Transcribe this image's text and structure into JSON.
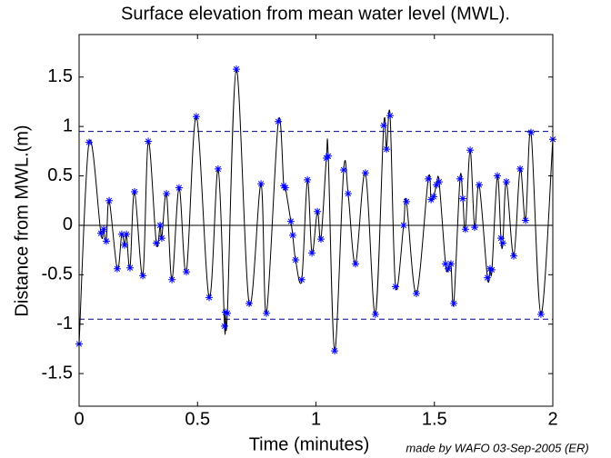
{
  "chart_data": {
    "type": "line",
    "title": "Surface elevation from mean water level (MWL).",
    "xlabel": "Time (minutes)",
    "ylabel": "Distance from MWL.(m)",
    "credit": "made by WAFO 03-Sep-2005 (ER)",
    "x": [
      0,
      0.042,
      0.092,
      0.104,
      0.115,
      0.127,
      0.161,
      0.18,
      0.192,
      0.2,
      0.215,
      0.234,
      0.269,
      0.292,
      0.326,
      0.342,
      0.349,
      0.369,
      0.392,
      0.422,
      0.453,
      0.495,
      0.549,
      0.587,
      0.614,
      0.618,
      0.626,
      0.664,
      0.718,
      0.768,
      0.791,
      0.841,
      0.864,
      0.871,
      0.894,
      0.902,
      0.914,
      0.94,
      0.964,
      0.983,
      1.006,
      1.021,
      1.044,
      1.052,
      1.079,
      1.117,
      1.136,
      1.167,
      1.209,
      1.251,
      1.286,
      1.298,
      1.313,
      1.336,
      1.37,
      1.382,
      1.424,
      1.474,
      1.486,
      1.497,
      1.509,
      1.52,
      1.547,
      1.559,
      1.57,
      1.582,
      1.608,
      1.62,
      1.631,
      1.651,
      1.67,
      1.689,
      1.724,
      1.735,
      1.743,
      1.766,
      1.781,
      1.789,
      1.804,
      1.835,
      1.862,
      1.885,
      1.908,
      1.95,
      2.0
    ],
    "series": [
      {
        "name": "surface",
        "color": "#000000",
        "marker_color": "#0000ff",
        "values": [
          -1.2,
          0.84,
          -0.08,
          -0.04,
          -0.16,
          0.25,
          -0.44,
          -0.09,
          -0.2,
          -0.09,
          -0.43,
          0.34,
          -0.51,
          0.85,
          -0.18,
          0.0,
          -0.13,
          0.32,
          -0.55,
          0.38,
          -0.47,
          1.1,
          -0.73,
          0.57,
          -1.02,
          -0.88,
          -0.89,
          1.58,
          -0.79,
          0.42,
          -0.89,
          1.05,
          0.4,
          0.38,
          0.04,
          -0.1,
          -0.35,
          -0.55,
          0.46,
          -0.28,
          0.14,
          -0.14,
          0.68,
          0.7,
          -1.27,
          0.56,
          0.32,
          -0.39,
          0.53,
          -0.9,
          1.01,
          0.77,
          1.11,
          -0.62,
          0.0,
          0.24,
          -0.69,
          0.47,
          0.26,
          0.29,
          0.41,
          0.44,
          -0.39,
          -0.44,
          -0.39,
          -0.79,
          0.47,
          0.27,
          -0.04,
          0.76,
          -0.02,
          0.41,
          -0.53,
          -0.44,
          -0.45,
          0.5,
          -0.13,
          -0.18,
          0.44,
          -0.31,
          0.57,
          0.05,
          0.94,
          -0.9,
          0.87
        ]
      }
    ],
    "hlines": [
      0.95,
      -0.95
    ],
    "xlim": [
      0,
      2
    ],
    "ylim": [
      -1.83,
      1.93
    ],
    "xticks": [
      0,
      0.5,
      1,
      1.5,
      2
    ],
    "yticks": [
      -1.5,
      -1,
      -0.5,
      0,
      0.5,
      1,
      1.5
    ]
  }
}
